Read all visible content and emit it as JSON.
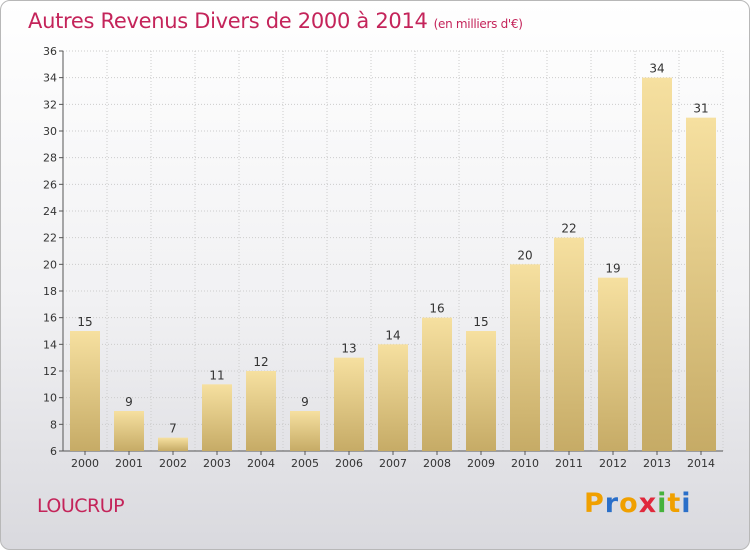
{
  "header": {
    "title": "Autres Revenus Divers de 2000 à 2014",
    "unit": "(en milliers d'€)"
  },
  "footer": {
    "place": "LOUCRUP",
    "brand": "Proxiti",
    "brand_letters": [
      "P",
      "r",
      "o",
      "x",
      "i",
      "t",
      "i"
    ],
    "brand_colors": [
      "#f0a000",
      "#2a6fc9",
      "#f0a000",
      "#e0283c",
      "#46b23c",
      "#f0a000",
      "#2a6fc9"
    ]
  },
  "colors": {
    "title": "#c4245a",
    "bar_light": "#f6e0a0",
    "bar_dark": "#c6ab66",
    "grid": "#cccccc"
  },
  "chart_data": {
    "type": "bar",
    "title": "Autres Revenus Divers de 2000 à 2014",
    "subtitle": "(en milliers d'€)",
    "categories": [
      "2000",
      "2001",
      "2002",
      "2003",
      "2004",
      "2005",
      "2006",
      "2007",
      "2008",
      "2009",
      "2010",
      "2011",
      "2012",
      "2013",
      "2014"
    ],
    "values": [
      15,
      9,
      7,
      11,
      12,
      9,
      13,
      14,
      16,
      15,
      20,
      22,
      19,
      34,
      31
    ],
    "ylim": [
      6,
      36
    ],
    "yticks": [
      6,
      8,
      10,
      12,
      14,
      16,
      18,
      20,
      22,
      24,
      26,
      28,
      30,
      32,
      34,
      36
    ],
    "grid": true,
    "xlabel": "",
    "ylabel": ""
  }
}
